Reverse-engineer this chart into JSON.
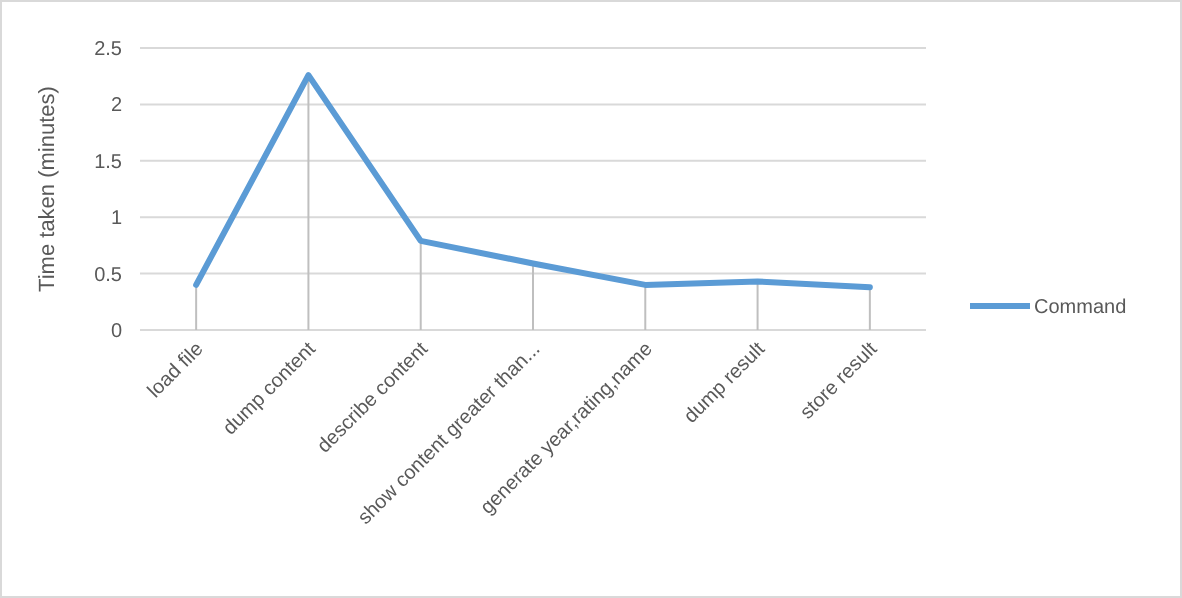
{
  "chart_data": {
    "type": "line",
    "ylabel": "Time taken (minutes)",
    "categories": [
      "load file",
      "dump content",
      "describe content",
      "show content greater than...",
      "generate year,rating,name",
      "dump result",
      "store result"
    ],
    "series": [
      {
        "name": "Command",
        "color": "#5b9bd5",
        "values": [
          0.4,
          2.26,
          0.79,
          0.59,
          0.4,
          0.43,
          0.38
        ],
        "errors": [
          [
            0,
            0.4
          ],
          [
            0,
            2.26
          ],
          [
            0,
            0.79
          ],
          [
            0,
            0.59
          ],
          [
            0,
            0.4
          ],
          [
            0,
            0.43
          ],
          [
            0,
            0.38
          ]
        ]
      }
    ],
    "ylim": [
      0,
      2.5
    ],
    "yticks": [
      0,
      0.5,
      1,
      1.5,
      2,
      2.5
    ],
    "grid": "y",
    "legend": "right",
    "marker": "none",
    "line_style": "solid"
  }
}
